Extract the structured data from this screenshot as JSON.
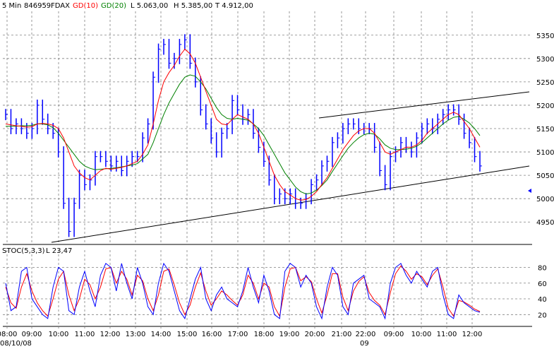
{
  "header": {
    "interval": "5 Min",
    "symbol_id": "846959",
    "symbol": "FDAX",
    "ma1_label": "GD(10)",
    "ma2_label": "GD(20)",
    "low": "L  5.063,00",
    "high": "H  5.385,00",
    "trough": "T  4.912,00"
  },
  "stoch_header": {
    "label": "STOC(5,3,3)",
    "value": "L  23,47"
  },
  "colors": {
    "price": "#0000ff",
    "ma10": "#ff0000",
    "ma20": "#008000",
    "stoch_k": "#0000ff",
    "stoch_d": "#ff0000",
    "grid": "#808080",
    "trendline": "#000000",
    "marker": "#0000ff"
  },
  "chart_data": [
    {
      "type": "line",
      "title": "",
      "y_ticks": [
        4950,
        5000,
        5050,
        5100,
        5150,
        5200,
        5250,
        5300,
        5350
      ],
      "ylim": [
        4905,
        5395
      ],
      "x_tick_labels": [
        "08:00",
        "09:00",
        "10:00",
        "11:00",
        "12:00",
        "13:00",
        "14:00",
        "15:00",
        "16:00",
        "17:00",
        "18:00",
        "19:00",
        "20:00",
        "21:00",
        "22:00",
        "09:00",
        "10:00",
        "11:00",
        "12:00"
      ],
      "date_labels": [
        "08/10/08",
        "09"
      ],
      "grid": true,
      "series": [
        {
          "name": "FDAX",
          "values": [
            5180,
            5150,
            5160,
            5150,
            5140,
            5150,
            5200,
            5170,
            5150,
            5140,
            5100,
            4990,
            4930,
            4990,
            5050,
            5030,
            5040,
            5090,
            5090,
            5080,
            5070,
            5080,
            5060,
            5080,
            5090,
            5090,
            5130,
            5160,
            5260,
            5320,
            5330,
            5290,
            5300,
            5330,
            5340,
            5290,
            5250,
            5190,
            5160,
            5130,
            5100,
            5140,
            5150,
            5210,
            5190,
            5170,
            5180,
            5140,
            5110,
            5080,
            5040,
            5000,
            5010,
            5000,
            5010,
            4990,
            4990,
            5000,
            5030,
            5040,
            5070,
            5080,
            5120,
            5130,
            5150,
            5160,
            5160,
            5150,
            5150,
            5150,
            5110,
            5060,
            5030,
            5090,
            5100,
            5120,
            5110,
            5100,
            5130,
            5150,
            5160,
            5150,
            5170,
            5180,
            5190,
            5190,
            5170,
            5140,
            5120,
            5090,
            5070
          ]
        },
        {
          "name": "GD(10)",
          "values": [
            5160,
            5158,
            5156,
            5155,
            5153,
            5154,
            5160,
            5161,
            5160,
            5157,
            5150,
            5130,
            5100,
            5070,
            5055,
            5045,
            5040,
            5050,
            5060,
            5065,
            5063,
            5065,
            5067,
            5070,
            5075,
            5080,
            5095,
            5115,
            5160,
            5210,
            5250,
            5270,
            5285,
            5305,
            5320,
            5310,
            5290,
            5260,
            5230,
            5200,
            5170,
            5160,
            5158,
            5170,
            5180,
            5175,
            5170,
            5160,
            5140,
            5110,
            5080,
            5050,
            5030,
            5015,
            5008,
            5000,
            4997,
            4998,
            5005,
            5015,
            5030,
            5045,
            5065,
            5085,
            5105,
            5120,
            5135,
            5145,
            5150,
            5150,
            5140,
            5120,
            5100,
            5095,
            5100,
            5105,
            5110,
            5110,
            5115,
            5125,
            5140,
            5150,
            5160,
            5170,
            5180,
            5185,
            5180,
            5165,
            5150,
            5130,
            5110
          ]
        },
        {
          "name": "GD(20)",
          "values": [
            5155,
            5155,
            5155,
            5156,
            5156,
            5157,
            5160,
            5160,
            5158,
            5152,
            5140,
            5125,
            5110,
            5095,
            5080,
            5070,
            5065,
            5062,
            5063,
            5064,
            5065,
            5066,
            5068,
            5070,
            5072,
            5075,
            5085,
            5095,
            5120,
            5150,
            5180,
            5205,
            5225,
            5245,
            5260,
            5265,
            5262,
            5250,
            5235,
            5215,
            5195,
            5180,
            5172,
            5170,
            5172,
            5170,
            5168,
            5160,
            5150,
            5135,
            5115,
            5095,
            5075,
            5055,
            5040,
            5025,
            5015,
            5010,
            5012,
            5018,
            5028,
            5040,
            5058,
            5075,
            5092,
            5108,
            5120,
            5130,
            5137,
            5140,
            5138,
            5128,
            5115,
            5108,
            5105,
            5105,
            5106,
            5108,
            5112,
            5120,
            5130,
            5140,
            5150,
            5160,
            5168,
            5174,
            5176,
            5170,
            5162,
            5150,
            5135
          ]
        }
      ]
    },
    {
      "type": "line",
      "title": "",
      "y_ticks": [
        20,
        40,
        60,
        80
      ],
      "ylim": [
        5,
        93
      ],
      "x_tick_labels": [
        "08:00",
        "09:00",
        "10:00",
        "11:00",
        "12:00",
        "13:00",
        "14:00",
        "15:00",
        "16:00",
        "17:00",
        "18:00",
        "19:00",
        "20:00",
        "21:00",
        "22:00",
        "09:00",
        "10:00",
        "11:00",
        "12:00"
      ],
      "grid": true,
      "series": [
        {
          "name": "STOC(5,3,3)",
          "values": [
            60,
            25,
            30,
            75,
            80,
            40,
            30,
            20,
            15,
            55,
            80,
            75,
            25,
            20,
            55,
            75,
            50,
            30,
            70,
            85,
            80,
            50,
            85,
            60,
            40,
            80,
            60,
            30,
            20,
            60,
            85,
            75,
            50,
            25,
            15,
            40,
            65,
            80,
            40,
            25,
            45,
            55,
            40,
            35,
            30,
            50,
            80,
            55,
            35,
            70,
            50,
            20,
            15,
            75,
            85,
            80,
            55,
            70,
            60,
            30,
            15,
            55,
            80,
            70,
            30,
            20,
            60,
            65,
            70,
            40,
            35,
            30,
            15,
            60,
            80,
            85,
            70,
            60,
            75,
            65,
            55,
            75,
            80,
            45,
            20,
            15,
            45,
            35,
            30,
            25,
            23
          ]
        },
        {
          "name": "%D",
          "values": [
            55,
            35,
            28,
            55,
            72,
            50,
            35,
            25,
            18,
            40,
            65,
            75,
            45,
            25,
            40,
            65,
            58,
            40,
            55,
            78,
            80,
            60,
            75,
            65,
            45,
            70,
            63,
            40,
            25,
            45,
            75,
            78,
            58,
            35,
            20,
            32,
            55,
            73,
            50,
            32,
            40,
            50,
            45,
            38,
            32,
            45,
            70,
            60,
            40,
            60,
            55,
            30,
            18,
            55,
            78,
            80,
            63,
            68,
            62,
            40,
            22,
            45,
            72,
            72,
            42,
            25,
            50,
            62,
            68,
            48,
            38,
            32,
            20,
            48,
            72,
            82,
            75,
            65,
            72,
            68,
            58,
            70,
            78,
            55,
            28,
            18,
            38,
            36,
            32,
            27,
            24
          ]
        }
      ]
    }
  ]
}
